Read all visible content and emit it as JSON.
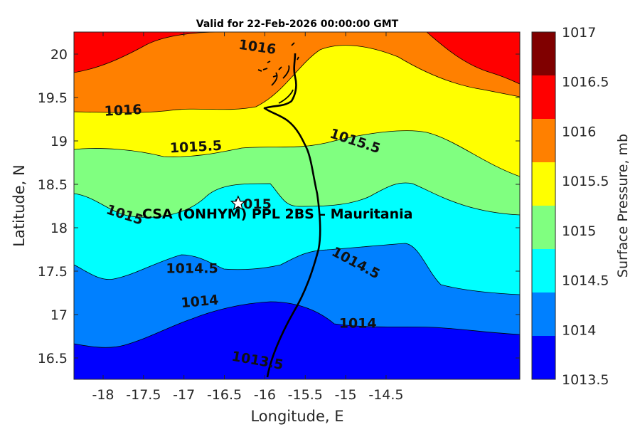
{
  "title": "Valid for 22-Feb-2026 00:00:00 GMT",
  "xlabel": "Longitude, E",
  "ylabel": "Latitude, N",
  "colorbar_label": "Surface Pressure, mb",
  "site_label": "CSA (ONHYM) PPL 2BS  – Mauritania",
  "xticks": [
    "-18",
    "-17.5",
    "-17",
    "-16.5",
    "-16",
    "-15.5",
    "-15",
    "-14.5"
  ],
  "yticks": [
    "20",
    "19.5",
    "19",
    "18.5",
    "18",
    "17.5",
    "17",
    "16.5"
  ],
  "colorbar_ticks": [
    "1017",
    "1016.5",
    "1016",
    "1015.5",
    "1015",
    "1014.5",
    "1014",
    "1013.5"
  ],
  "levels": [
    {
      "range": "1016.5-1017",
      "color": "#800000"
    },
    {
      "range": "1016-1016.5",
      "color": "#ff0000"
    },
    {
      "range": "1015.5-1016",
      "color": "#ff8000"
    },
    {
      "range": "1015-1015.5",
      "color": "#ffff00"
    },
    {
      "range": "1014.5-1015",
      "color": "#80ff80"
    },
    {
      "range": "1014-1014.5",
      "color": "#00ffff"
    },
    {
      "range": "1013.5-1014",
      "color": "#0080ff"
    },
    {
      "range": "<1013.5",
      "color": "#0000ff"
    }
  ],
  "contour_labels": [
    {
      "text": "1016",
      "lon": -16.1,
      "lat": 20.03
    },
    {
      "text": "1016",
      "lon": -17.75,
      "lat": 19.3
    },
    {
      "text": "1015.5",
      "lon": -16.85,
      "lat": 18.88
    },
    {
      "text": "1015.5",
      "lon": -14.9,
      "lat": 18.95
    },
    {
      "text": "1015",
      "lon": -17.75,
      "lat": 18.1
    },
    {
      "text": "1015",
      "lon": -16.15,
      "lat": 18.22
    },
    {
      "text": "1014.5",
      "lon": -16.9,
      "lat": 17.48
    },
    {
      "text": "1014.5",
      "lon": -14.9,
      "lat": 17.55
    },
    {
      "text": "1014",
      "lon": -16.8,
      "lat": 17.1
    },
    {
      "text": "1014",
      "lon": -14.85,
      "lat": 16.85
    },
    {
      "text": "1013.5",
      "lon": -16.1,
      "lat": 16.42
    }
  ],
  "site": {
    "name_icon": "star-icon",
    "lon": -16.33,
    "lat": 18.28
  }
}
